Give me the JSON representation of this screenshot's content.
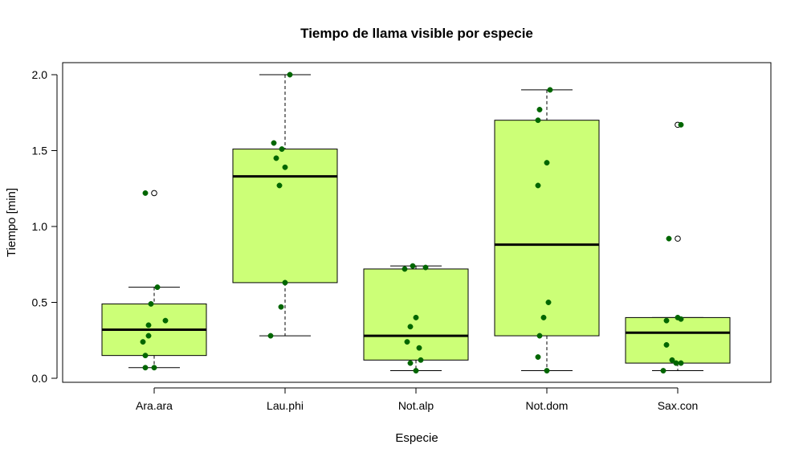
{
  "chart_data": {
    "type": "boxplot",
    "title": "Tiempo de llama visible por especie",
    "xlabel": "Especie",
    "ylabel": "Tiempo [min]",
    "ylim": [
      0,
      2.0
    ],
    "yticks": [
      "0.0",
      "0.5",
      "1.0",
      "1.5",
      "2.0"
    ],
    "categories": [
      "Ara.ara",
      "Lau.phi",
      "Not.alp",
      "Not.dom",
      "Sax.con"
    ],
    "colors": {
      "box_fill": "#ccff77",
      "point": "#006600",
      "outlier": "#ffffff",
      "stroke": "#000000"
    },
    "boxes": [
      {
        "whisker_low": 0.07,
        "q1": 0.15,
        "median": 0.32,
        "q3": 0.49,
        "whisker_high": 0.6,
        "outliers": [
          1.22
        ]
      },
      {
        "whisker_low": 0.28,
        "q1": 0.63,
        "median": 1.33,
        "q3": 1.51,
        "whisker_high": 2.0,
        "outliers": []
      },
      {
        "whisker_low": 0.05,
        "q1": 0.12,
        "median": 0.28,
        "q3": 0.72,
        "whisker_high": 0.74,
        "outliers": []
      },
      {
        "whisker_low": 0.05,
        "q1": 0.28,
        "median": 0.88,
        "q3": 1.7,
        "whisker_high": 1.9,
        "outliers": []
      },
      {
        "whisker_low": 0.05,
        "q1": 0.1,
        "median": 0.3,
        "q3": 0.4,
        "whisker_high": 0.4,
        "outliers": [
          0.92,
          1.67
        ]
      }
    ],
    "points": [
      [
        0.07,
        0.07,
        0.15,
        0.24,
        0.28,
        0.35,
        0.38,
        0.49,
        0.6,
        1.22
      ],
      [
        0.28,
        0.47,
        0.63,
        1.27,
        1.39,
        1.45,
        1.51,
        1.55,
        2.0
      ],
      [
        0.05,
        0.1,
        0.12,
        0.2,
        0.24,
        0.34,
        0.4,
        0.72,
        0.73,
        0.74
      ],
      [
        0.05,
        0.14,
        0.28,
        0.4,
        0.5,
        1.27,
        1.42,
        1.7,
        1.77,
        1.9
      ],
      [
        0.05,
        0.1,
        0.1,
        0.12,
        0.22,
        0.38,
        0.39,
        0.4,
        0.92,
        1.67
      ]
    ]
  }
}
